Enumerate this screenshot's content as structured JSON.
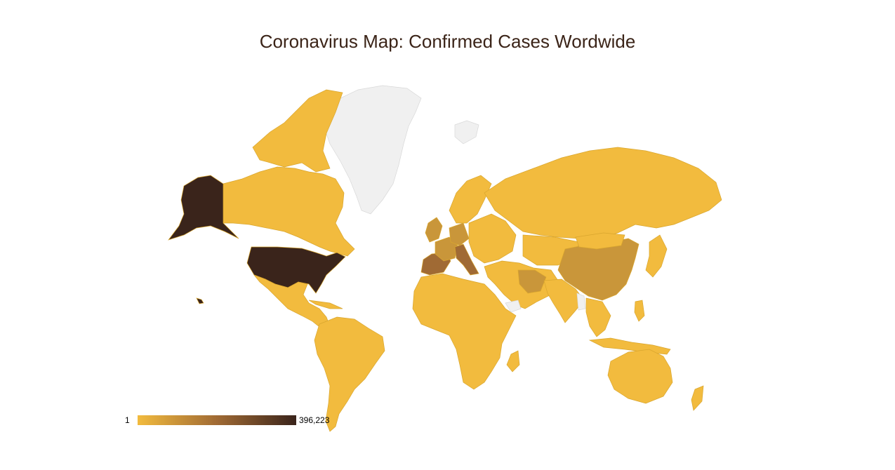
{
  "title": "Coronavirus Map: Confirmed Cases Wordwide",
  "colors": {
    "low": "#f2bb3e",
    "mid": "#c9963a",
    "high": "#a06a34",
    "max": "#3a241b",
    "nodata": "#f0f0f0",
    "border": "#d9a62e"
  },
  "legend": {
    "min_label": "1",
    "max_label": "396,223"
  }
}
